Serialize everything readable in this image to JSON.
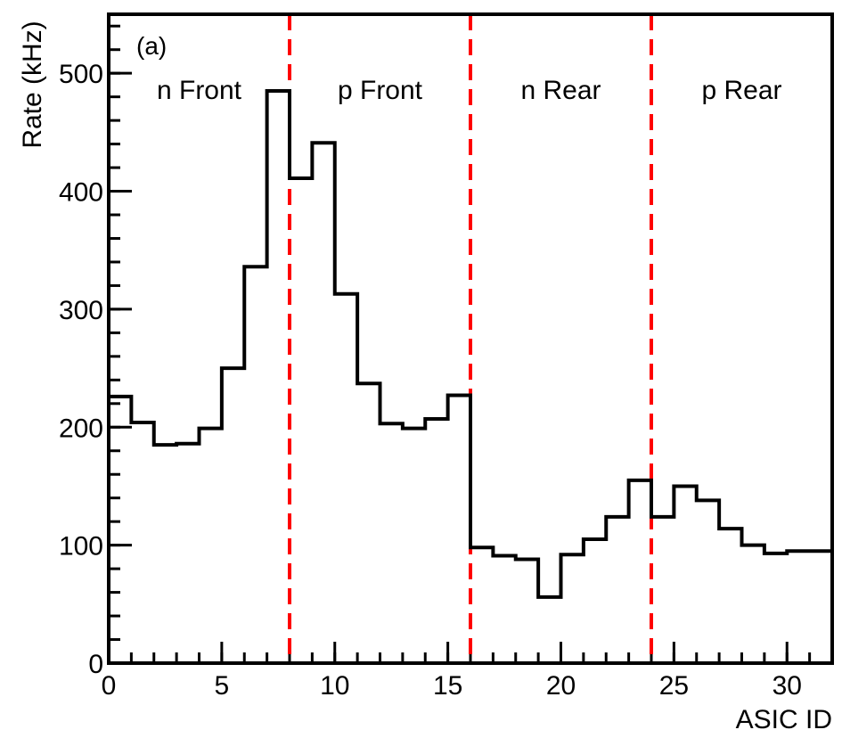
{
  "chart_data": {
    "type": "histogram",
    "panel_label": "(a)",
    "xlabel": "ASIC ID",
    "ylabel": "Rate (kHz)",
    "xlim": [
      0,
      32
    ],
    "ylim": [
      0,
      550
    ],
    "x_ticks": [
      0,
      5,
      10,
      15,
      20,
      25,
      30
    ],
    "y_ticks": [
      0,
      100,
      200,
      300,
      400,
      500
    ],
    "grid": false,
    "bin_edges_start": 0,
    "bin_width": 1,
    "values": [
      226,
      204,
      185,
      186,
      199,
      250,
      336,
      485,
      411,
      441,
      313,
      237,
      203,
      199,
      207,
      227,
      98,
      91,
      88,
      56,
      92,
      105,
      124,
      155,
      124,
      150,
      138,
      114,
      100,
      93,
      95,
      95
    ],
    "line_color": "#000000",
    "dividers": {
      "x": [
        8,
        16,
        24
      ],
      "color": "#ff0000",
      "style": "dashed"
    },
    "regions": [
      {
        "label": "n Front",
        "x_center": 4
      },
      {
        "label": "p Front",
        "x_center": 12
      },
      {
        "label": "n Rear",
        "x_center": 20
      },
      {
        "label": "p Rear",
        "x_center": 28
      }
    ]
  }
}
